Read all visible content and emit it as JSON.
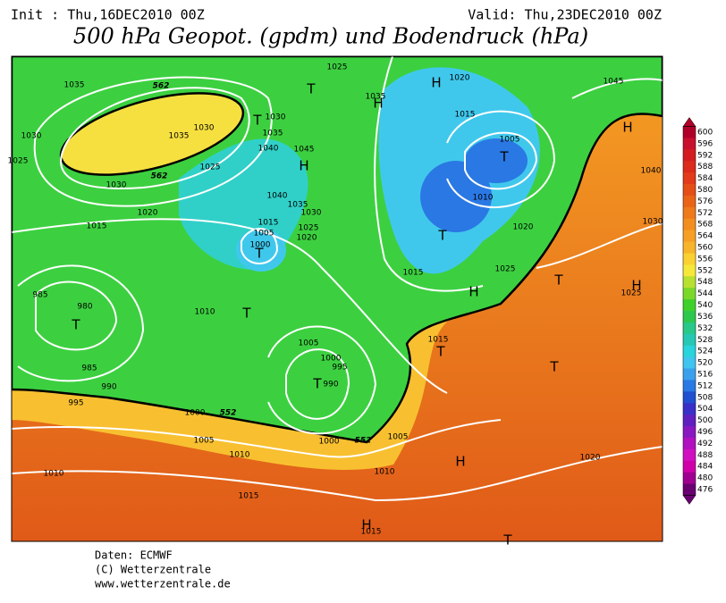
{
  "header": {
    "init": "Init : Thu,16DEC2010 00Z",
    "valid": "Valid: Thu,23DEC2010 00Z",
    "title": "500 hPa Geopot. (gpdm) und Bodendruck (hPa)"
  },
  "footer": {
    "source": "Daten: ECMWF",
    "copyright": "(C) Wetterzentrale",
    "url": "www.wetterzentrale.de"
  },
  "colorbar": {
    "labels": [
      "600",
      "596",
      "592",
      "588",
      "584",
      "580",
      "576",
      "572",
      "568",
      "564",
      "560",
      "556",
      "552",
      "548",
      "544",
      "540",
      "536",
      "532",
      "528",
      "524",
      "520",
      "516",
      "512",
      "508",
      "504",
      "500",
      "496",
      "492",
      "488",
      "484",
      "480",
      "476"
    ],
    "colors": [
      "#b0002a",
      "#c8102e",
      "#d41c20",
      "#dc2a1c",
      "#e23a1a",
      "#e64e18",
      "#ea6418",
      "#ee7a1c",
      "#f28e20",
      "#f5a024",
      "#f8b42a",
      "#fad032",
      "#f6e83a",
      "#b8e030",
      "#7ad82a",
      "#40d02c",
      "#2cc84e",
      "#28c888",
      "#26c8b4",
      "#2ad4dc",
      "#40c4f0",
      "#3aa0ec",
      "#2a78e4",
      "#2050d0",
      "#3a30c8",
      "#6020c0",
      "#8a18c0",
      "#b010c0",
      "#d010c0",
      "#d000a8",
      "#a00090",
      "#6a0070"
    ]
  },
  "map": {
    "labels": [
      "1035",
      "1030",
      "1025",
      "1030",
      "1020",
      "1015",
      "1035",
      "1030",
      "1025",
      "1030",
      "1035",
      "1040",
      "1045",
      "1040",
      "1035",
      "1030",
      "1025",
      "1020",
      "1015",
      "1005",
      "1000",
      "1025",
      "1035",
      "1020",
      "1015",
      "1005",
      "1010",
      "1020",
      "1025",
      "1015",
      "1010",
      "985",
      "980",
      "985",
      "990",
      "995",
      "1005",
      "1000",
      "995",
      "990",
      "1015",
      "1000",
      "1005",
      "1010",
      "1000",
      "1005",
      "1010",
      "1010",
      "1015",
      "1015",
      "1020",
      "1045",
      "1040",
      "1030",
      "1025"
    ],
    "centers": [
      "H",
      "H",
      "T",
      "T",
      "H",
      "T",
      "T",
      "T",
      "T",
      "T",
      "T",
      "H",
      "T",
      "T",
      "T",
      "H",
      "H",
      "H",
      "H",
      "T"
    ],
    "geopotential": [
      "562",
      "562",
      "552",
      "552"
    ]
  }
}
